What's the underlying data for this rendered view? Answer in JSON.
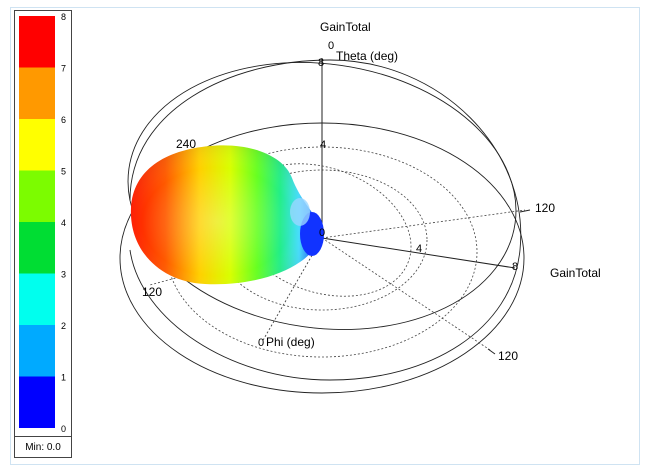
{
  "window": {
    "title": ""
  },
  "legend": {
    "ticks": [
      "8",
      "7",
      "6",
      "5",
      "4",
      "3",
      "2",
      "1",
      "0"
    ],
    "colors": [
      "#ff0000",
      "#ff9900",
      "#ffff00",
      "#7cfc00",
      "#00dd33",
      "#00ffee",
      "#00aaff",
      "#0000ff"
    ],
    "min_label": "Min: 0.0"
  },
  "chart_data": {
    "type": "3d-polar-radiation-pattern",
    "quantity": "GainTotal",
    "color_scale": {
      "min": 0,
      "max": 8,
      "steps": 8
    },
    "axes": {
      "vertical": {
        "label": "GainTotal",
        "sub_label": "Theta (deg)",
        "origin_tick": "0",
        "ticks": [
          "8",
          "4",
          "0"
        ]
      },
      "radial_right": {
        "label": "GainTotal",
        "ticks": [
          "8",
          "4",
          "0"
        ]
      },
      "phi": {
        "label": "Phi (deg)",
        "origin_tick": "0"
      },
      "angle_labels": [
        "240",
        "120",
        "120",
        "120"
      ]
    },
    "lobe": {
      "peak_gain": 8,
      "direction": "Phi ~ 240 deg"
    }
  }
}
